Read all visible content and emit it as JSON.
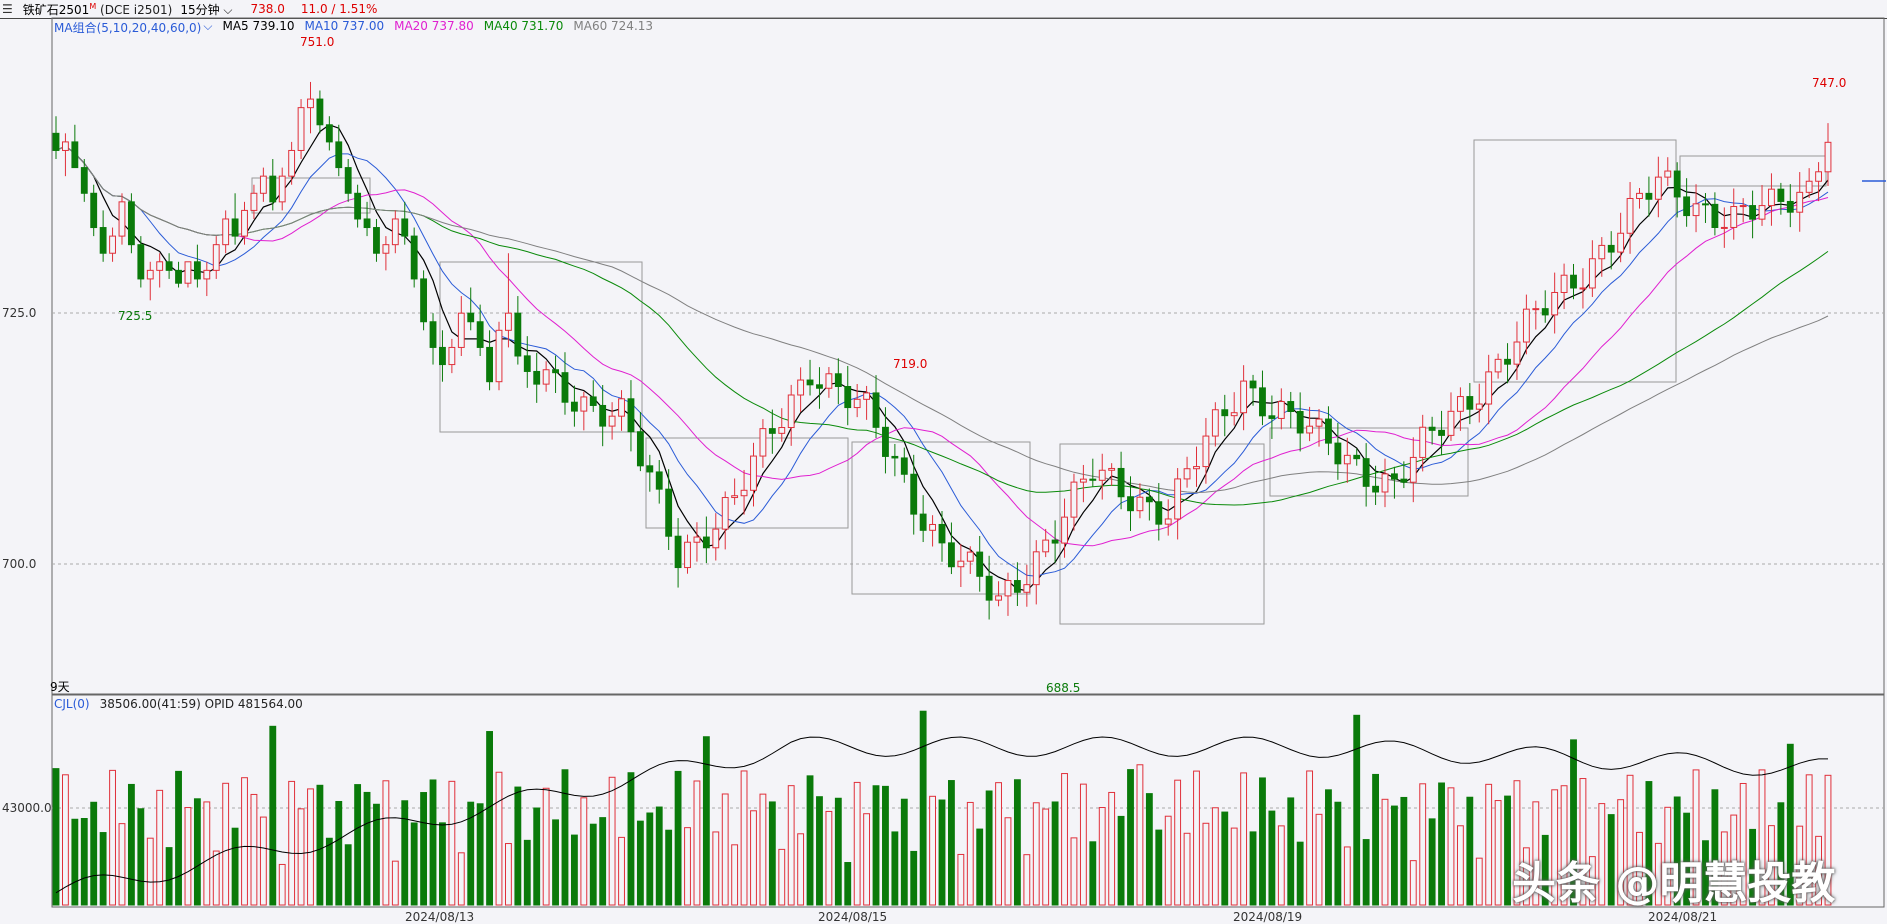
{
  "header": {
    "menu_icon": "menu-icon",
    "symbol": "铁矿石2501",
    "symbol_flag": "M",
    "exchange_code": "(DCE i2501)",
    "period": "15分钟",
    "period_dropdown_icon": "chevron-down-icon",
    "last_price": "738.0",
    "change": "11.0 / 1.51%"
  },
  "ma_legend": {
    "group": "MA组合(5,10,20,40,60,0)",
    "ma5": "MA5 739.10",
    "ma10": "MA10 737.00",
    "ma20": "MA20 737.80",
    "ma40": "MA40 731.70",
    "ma60": "MA60 724.13"
  },
  "volume_legend": {
    "name": "CJL(0)",
    "values": "38506.00(41:59)  OPID 481564.00"
  },
  "price_axis": {
    "ticks": [
      "725.0",
      "700.0"
    ]
  },
  "volume_axis": {
    "ticks": [
      "43000.0"
    ]
  },
  "date_axis": {
    "labels": [
      "2024/08/13",
      "2024/08/15",
      "2024/08/19",
      "2024/08/21"
    ]
  },
  "annotations": {
    "high_label": "751.0",
    "low_label_left": "725.5",
    "mid_high": "719.0",
    "low_label": "688.5",
    "last_high": "747.0",
    "days_label": "9天"
  },
  "watermark": "头条 @明慧投教",
  "colors": {
    "up": "#e0303a",
    "down": "#0a7a0a",
    "ma5": "#000000",
    "ma10": "#2a5bd7",
    "ma20": "#e020d0",
    "ma40": "#0a8a0a",
    "ma60": "#808080",
    "oi_line": "#000000"
  },
  "chart_data": {
    "type": "candlestick",
    "price_ylim": [
      680,
      758
    ],
    "volume_ylim": [
      0,
      85000
    ],
    "candles_ohlc": [
      [
        745,
        747,
        742,
        743
      ],
      [
        743,
        745,
        740,
        744
      ],
      [
        744,
        746,
        741,
        741
      ],
      [
        741,
        742,
        737,
        738
      ],
      [
        738,
        739,
        733,
        734
      ],
      [
        734,
        736,
        730,
        731
      ],
      [
        731,
        734,
        730,
        733
      ],
      [
        733,
        738,
        732,
        737
      ],
      [
        737,
        738,
        731,
        732
      ],
      [
        732,
        733,
        727,
        728
      ],
      [
        728,
        730,
        725.5,
        729
      ],
      [
        729,
        731,
        727,
        730
      ],
      [
        730,
        731,
        728,
        729
      ],
      [
        729,
        730,
        727,
        727.5
      ],
      [
        727.5,
        730,
        727,
        730
      ],
      [
        730,
        732,
        727,
        728
      ],
      [
        728,
        730,
        726,
        729
      ],
      [
        729,
        733,
        728,
        732
      ],
      [
        732,
        736,
        731,
        735
      ],
      [
        735,
        738,
        732,
        733
      ],
      [
        733,
        737,
        732,
        736
      ],
      [
        736,
        739,
        735,
        738
      ],
      [
        738,
        741,
        737,
        740
      ],
      [
        740,
        742,
        736,
        737
      ],
      [
        737,
        741,
        736,
        740
      ],
      [
        740,
        744,
        739,
        743
      ],
      [
        743,
        749,
        742,
        748
      ],
      [
        748,
        751,
        745,
        749
      ],
      [
        749,
        750,
        745,
        746
      ],
      [
        746,
        747,
        743,
        744
      ],
      [
        744,
        746,
        740,
        741
      ],
      [
        741,
        742,
        737,
        738
      ],
      [
        738,
        739,
        734,
        735
      ],
      [
        735,
        737,
        733,
        734
      ],
      [
        734,
        735,
        730,
        731
      ],
      [
        731,
        733,
        729,
        732
      ],
      [
        732,
        736,
        731,
        735
      ],
      [
        735,
        737,
        732,
        733
      ],
      [
        733,
        734,
        727,
        728
      ],
      [
        728,
        729,
        722,
        723
      ],
      [
        723,
        724,
        718,
        720
      ],
      [
        720,
        722,
        716,
        718
      ],
      [
        718,
        721,
        717,
        720
      ],
      [
        720,
        726,
        719,
        724
      ],
      [
        724,
        727,
        722,
        723
      ],
      [
        723,
        725,
        719,
        720
      ],
      [
        720,
        722,
        715,
        716
      ],
      [
        716,
        723,
        715,
        722
      ],
      [
        722,
        731,
        720,
        724
      ],
      [
        724,
        726,
        718,
        719
      ]
    ],
    "ma_series": [
      "MA5",
      "MA10",
      "MA20",
      "MA40",
      "MA60"
    ],
    "volume_color_rule": "red = up, green = down"
  }
}
